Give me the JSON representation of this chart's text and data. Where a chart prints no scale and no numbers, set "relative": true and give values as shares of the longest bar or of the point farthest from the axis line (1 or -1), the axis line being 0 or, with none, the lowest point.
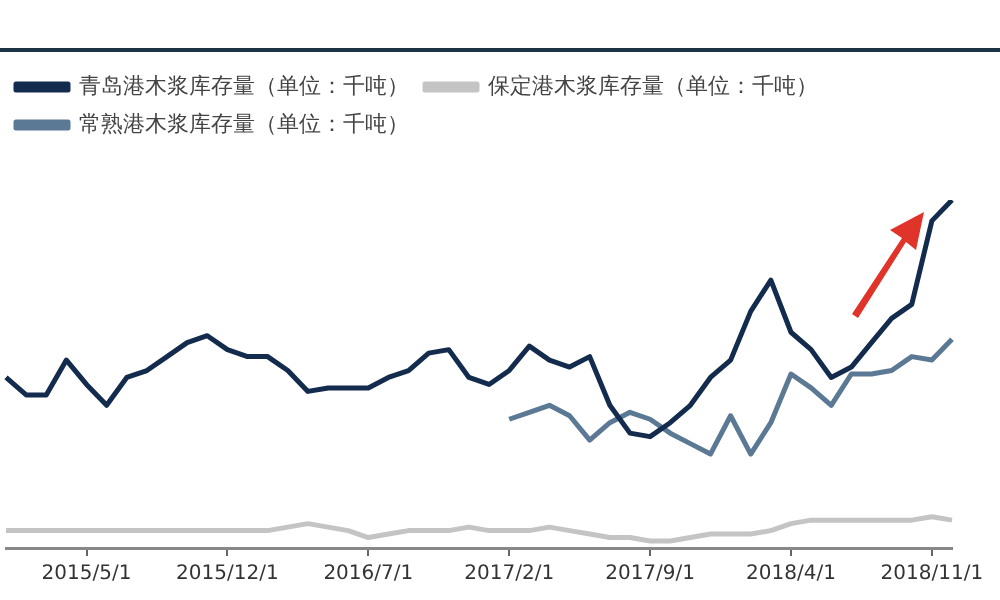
{
  "chart_data": {
    "type": "line",
    "relative": true,
    "legend": "top left",
    "grid": false,
    "marker": "none",
    "categories": [
      null,
      null,
      null,
      null,
      "2015/5/1",
      null,
      null,
      null,
      null,
      null,
      null,
      "2015/12/1",
      null,
      null,
      null,
      null,
      null,
      null,
      "2016/7/1",
      null,
      null,
      null,
      null,
      null,
      null,
      "2017/2/1",
      null,
      null,
      null,
      null,
      null,
      null,
      "2017/9/1",
      null,
      null,
      null,
      null,
      null,
      null,
      "2018/4/1",
      null,
      null,
      null,
      null,
      null,
      null,
      "2018/11/1",
      null
    ],
    "series": [
      {
        "name": "青岛港木浆库存量（单位：千吨）",
        "color": "#132b4c",
        "values": [
          0.49,
          0.44,
          0.44,
          0.54,
          0.47,
          0.41,
          0.49,
          0.51,
          0.55,
          0.59,
          0.61,
          0.57,
          0.55,
          0.55,
          0.51,
          0.45,
          0.46,
          0.46,
          0.46,
          0.49,
          0.51,
          0.56,
          0.57,
          0.49,
          0.47,
          0.51,
          0.58,
          0.54,
          0.52,
          0.55,
          0.41,
          0.33,
          0.32,
          0.36,
          0.41,
          0.49,
          0.54,
          0.68,
          0.77,
          0.62,
          0.57,
          0.49,
          0.52,
          0.59,
          0.66,
          0.7,
          0.94,
          1
        ]
      },
      {
        "name": "保定港木浆库存量（单位：千吨）",
        "color": "#c4c4c4",
        "values": [
          0.05,
          0.05,
          0.05,
          0.05,
          0.05,
          0.05,
          0.05,
          0.05,
          0.05,
          0.05,
          0.05,
          0.05,
          0.05,
          0.05,
          0.06,
          0.07,
          0.06,
          0.05,
          0.03,
          0.04,
          0.05,
          0.05,
          0.05,
          0.06,
          0.05,
          0.05,
          0.05,
          0.06,
          0.05,
          0.04,
          0.03,
          0.03,
          0.02,
          0.02,
          0.03,
          0.04,
          0.04,
          0.04,
          0.05,
          0.07,
          0.08,
          0.08,
          0.08,
          0.08,
          0.08,
          0.08,
          0.09,
          0.08
        ]
      },
      {
        "name": "常熟港木浆库存量（单位：千吨）",
        "color": "#5b7994",
        "values": [
          null,
          null,
          null,
          null,
          null,
          null,
          null,
          null,
          null,
          null,
          null,
          null,
          null,
          null,
          null,
          null,
          null,
          null,
          null,
          null,
          null,
          null,
          null,
          null,
          null,
          0.37,
          0.39,
          0.41,
          0.38,
          0.31,
          0.36,
          0.39,
          0.37,
          0.33,
          0.3,
          0.27,
          0.38,
          0.27,
          0.36,
          0.5,
          0.46,
          0.41,
          0.5,
          0.5,
          0.51,
          0.55,
          0.54,
          0.6
        ]
      }
    ]
  }
}
